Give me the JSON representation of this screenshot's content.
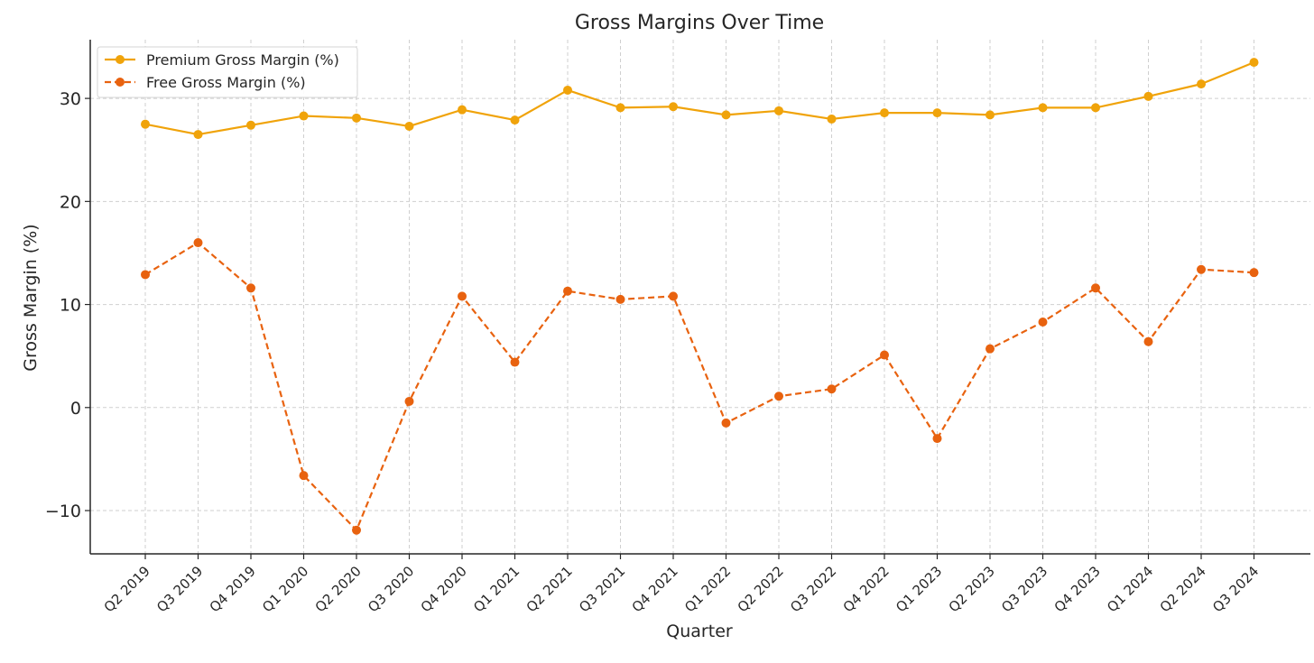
{
  "chart_data": {
    "type": "line",
    "title": "Gross Margins Over Time",
    "xlabel": "Quarter",
    "ylabel": "Gross Margin (%)",
    "categories": [
      "Q2 2019",
      "Q3 2019",
      "Q4 2019",
      "Q1 2020",
      "Q2 2020",
      "Q3 2020",
      "Q4 2020",
      "Q1 2021",
      "Q2 2021",
      "Q3 2021",
      "Q4 2021",
      "Q1 2022",
      "Q2 2022",
      "Q3 2022",
      "Q4 2022",
      "Q1 2023",
      "Q2 2023",
      "Q3 2023",
      "Q4 2023",
      "Q1 2024",
      "Q2 2024",
      "Q3 2024"
    ],
    "yticks": [
      -10,
      0,
      10,
      20,
      30
    ],
    "ytick_labels": [
      "−10",
      "0",
      "10",
      "20",
      "30"
    ],
    "ylim": [
      -14.2,
      35.7
    ],
    "grid": true,
    "legend_position": "top-left",
    "series": [
      {
        "name": "Premium Gross Margin (%)",
        "color": "#f0a30a",
        "line_style": "solid",
        "marker": "circle",
        "values": [
          27.5,
          26.5,
          27.4,
          28.3,
          28.1,
          27.3,
          28.9,
          27.9,
          30.8,
          29.1,
          29.2,
          28.4,
          28.8,
          28.0,
          28.6,
          28.6,
          28.4,
          29.1,
          29.1,
          30.2,
          31.4,
          33.5
        ]
      },
      {
        "name": "Free Gross Margin (%)",
        "color": "#e8620f",
        "line_style": "dashed",
        "marker": "circle",
        "values": [
          12.9,
          16.0,
          11.6,
          -6.6,
          -11.9,
          0.6,
          10.8,
          4.4,
          11.3,
          10.5,
          10.8,
          -1.5,
          1.1,
          1.8,
          5.1,
          -3.0,
          5.7,
          8.3,
          11.6,
          6.4,
          13.4,
          13.1
        ]
      }
    ]
  }
}
